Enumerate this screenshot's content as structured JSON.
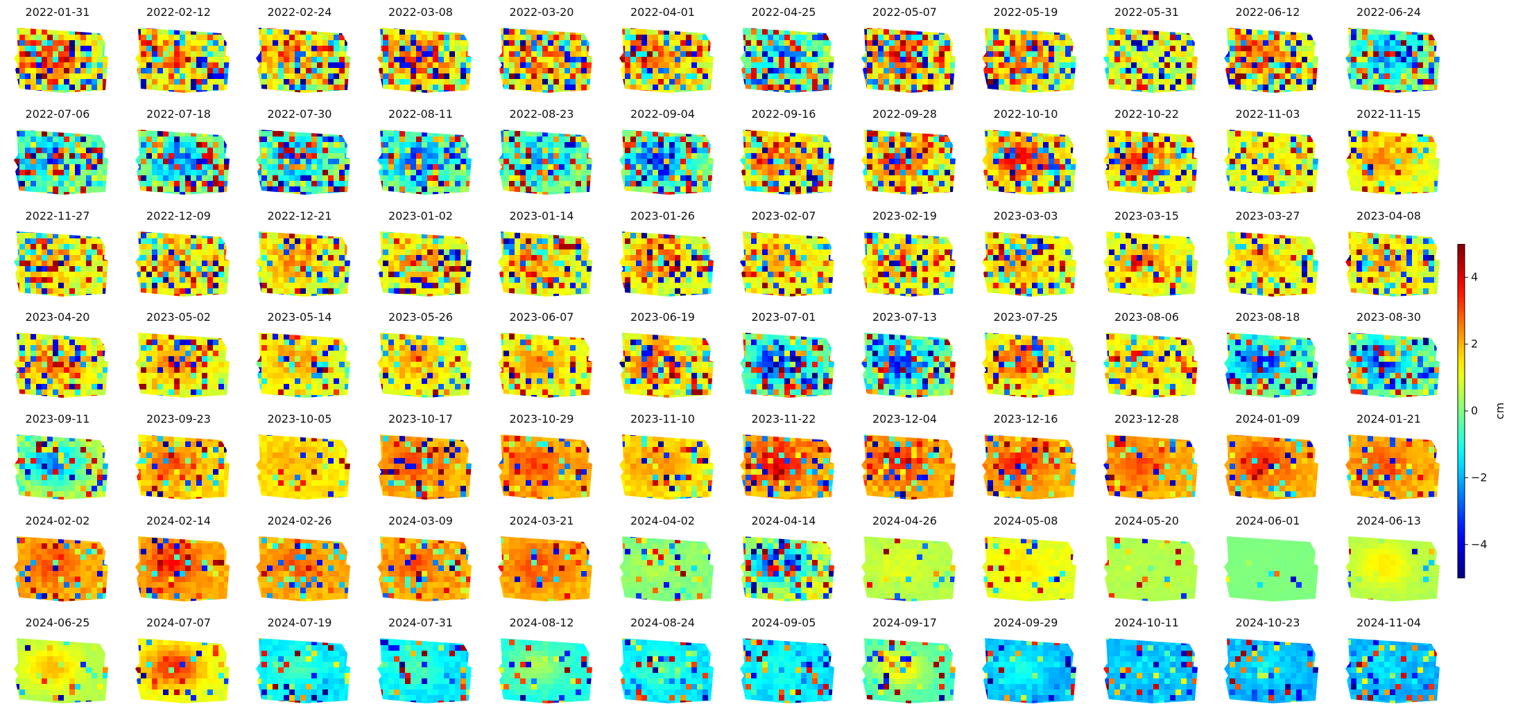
{
  "chart_data": {
    "type": "heatmap",
    "title": "",
    "colormap": "jet",
    "panel_titles": [
      "2022-01-31",
      "2022-02-12",
      "2022-02-24",
      "2022-03-08",
      "2022-03-20",
      "2022-04-01",
      "2022-04-25",
      "2022-05-07",
      "2022-05-19",
      "2022-05-31",
      "2022-06-12",
      "2022-06-24",
      "2022-07-06",
      "2022-07-18",
      "2022-07-30",
      "2022-08-11",
      "2022-08-23",
      "2022-09-04",
      "2022-09-16",
      "2022-09-28",
      "2022-10-10",
      "2022-10-22",
      "2022-11-03",
      "2022-11-15",
      "2022-11-27",
      "2022-12-09",
      "2022-12-21",
      "2023-01-02",
      "2023-01-14",
      "2023-01-26",
      "2023-02-07",
      "2023-02-19",
      "2023-03-03",
      "2023-03-15",
      "2023-03-27",
      "2023-04-08",
      "2023-04-20",
      "2023-05-02",
      "2023-05-14",
      "2023-05-26",
      "2023-06-07",
      "2023-06-19",
      "2023-07-01",
      "2023-07-13",
      "2023-07-25",
      "2023-08-06",
      "2023-08-18",
      "2023-08-30",
      "2023-09-11",
      "2023-09-23",
      "2023-10-05",
      "2023-10-17",
      "2023-10-29",
      "2023-11-10",
      "2023-11-22",
      "2023-12-04",
      "2023-12-16",
      "2023-12-28",
      "2024-01-09",
      "2024-01-21",
      "2024-02-02",
      "2024-02-14",
      "2024-02-26",
      "2024-03-09",
      "2024-03-21",
      "2024-04-02",
      "2024-04-14",
      "2024-04-26",
      "2024-05-08",
      "2024-05-20",
      "2024-06-01",
      "2024-06-13",
      "2024-06-25",
      "2024-07-07",
      "2024-07-19",
      "2024-07-31",
      "2024-08-12",
      "2024-08-24",
      "2024-09-05",
      "2024-09-17",
      "2024-09-29",
      "2024-10-11",
      "2024-10-23",
      "2024-11-04"
    ],
    "grid": {
      "rows": 7,
      "cols": 12
    },
    "approx_center_value_cm": [
      3.5,
      3,
      3,
      3.5,
      3.5,
      3,
      -3,
      3.5,
      3,
      1,
      3,
      -2.5,
      -3,
      -2.5,
      -3,
      -3,
      -2.5,
      -3.5,
      3,
      3.5,
      4,
      3.5,
      1.5,
      2.5,
      2.5,
      2.5,
      2.5,
      2.5,
      2.5,
      3,
      2,
      2,
      2.5,
      2.5,
      2,
      2.5,
      3,
      2.5,
      2.5,
      2.5,
      2.5,
      3.5,
      -3.5,
      -3.5,
      3,
      2,
      -3.5,
      -3.5,
      -2.5,
      3,
      2,
      3,
      3,
      2.5,
      4,
      3.5,
      3.5,
      3,
      3.5,
      3,
      3,
      3.5,
      3,
      3,
      3,
      0.5,
      -4,
      1,
      1.5,
      0.5,
      0,
      1.5,
      2,
      3.5,
      -0.5,
      -0.5,
      0.5,
      -0.5,
      -1,
      1.5,
      -1,
      -1.5,
      -1.5,
      -1.5
    ],
    "approx_background_value_cm": [
      1,
      1,
      1,
      1,
      1,
      1,
      0,
      1,
      1,
      1,
      1,
      0,
      0,
      0,
      0,
      0,
      0,
      0,
      1,
      1,
      1,
      1,
      1,
      1,
      1,
      1,
      1,
      1,
      1,
      1,
      1,
      1,
      1,
      1,
      1,
      1,
      1,
      1,
      1,
      1,
      1,
      1,
      0,
      0,
      1,
      1,
      0,
      0,
      0.5,
      1.5,
      1.5,
      2,
      2,
      1.5,
      2,
      2,
      2,
      2,
      2,
      2,
      2,
      2,
      2,
      2,
      2,
      0,
      1,
      0.5,
      1,
      0.5,
      0,
      0.5,
      0.5,
      1,
      -1.5,
      -1.5,
      -1,
      -1.5,
      -1.5,
      -0.5,
      -2,
      -2,
      -2,
      -2
    ],
    "approx_noise_level": [
      1,
      1,
      1,
      1,
      1,
      1,
      1,
      1,
      1,
      0.8,
      1,
      0.9,
      0.9,
      0.9,
      0.9,
      0.9,
      0.9,
      0.9,
      0.9,
      0.8,
      0.8,
      0.8,
      0.6,
      0.5,
      0.8,
      0.8,
      0.7,
      0.8,
      0.8,
      0.9,
      0.6,
      0.7,
      0.7,
      0.6,
      0.6,
      0.7,
      0.8,
      0.5,
      0.5,
      0.6,
      0.6,
      0.8,
      0.8,
      0.8,
      0.6,
      0.6,
      0.7,
      0.8,
      0.6,
      0.5,
      0.4,
      0.5,
      0.5,
      0.4,
      0.6,
      0.5,
      0.5,
      0.4,
      0.4,
      0.4,
      0.4,
      0.4,
      0.4,
      0.5,
      0.4,
      0.3,
      0.7,
      0.2,
      0.25,
      0.15,
      0.05,
      0.15,
      0.2,
      0.3,
      0.4,
      0.4,
      0.3,
      0.4,
      0.4,
      0.3,
      0.4,
      0.4,
      0.4,
      0.4
    ],
    "colorbar": {
      "label": "cm",
      "vmin": -5,
      "vmax": 5,
      "ticks": [
        -4,
        -2,
        0,
        2,
        4
      ],
      "tick_labels": [
        "−4",
        "−2",
        "0",
        "2",
        "4"
      ],
      "location": "right"
    }
  }
}
